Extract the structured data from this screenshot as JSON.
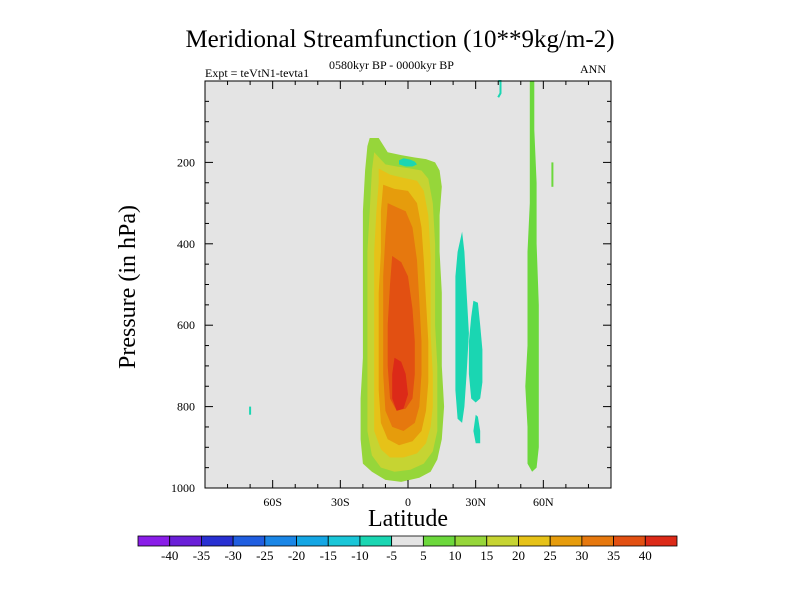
{
  "chart_data": {
    "type": "contour",
    "title": "Meridional Streamfunction (10**9kg/m-2)",
    "left_string": "Expt = teVtN1-tevta1",
    "center_string": "0580kyr BP - 0000kyr BP",
    "right_string": "ANN",
    "xlabel": "Latitude",
    "ylabel": "Pressure (in hPa)",
    "x_ticks": [
      {
        "value": -60,
        "label": "60S"
      },
      {
        "value": -30,
        "label": "30S"
      },
      {
        "value": 0,
        "label": "0"
      },
      {
        "value": 30,
        "label": "30N"
      },
      {
        "value": 60,
        "label": "60N"
      }
    ],
    "y_ticks": [
      {
        "value": 200,
        "label": "200"
      },
      {
        "value": 400,
        "label": "400"
      },
      {
        "value": 600,
        "label": "600"
      },
      {
        "value": 800,
        "label": "800"
      },
      {
        "value": 1000,
        "label": "1000"
      }
    ],
    "xlim": [
      -90,
      90
    ],
    "ylim": [
      1000,
      0
    ],
    "colorbar": {
      "levels": [
        "-40",
        "-35",
        "-30",
        "-25",
        "-20",
        "-15",
        "-10",
        "-5",
        "5",
        "10",
        "15",
        "20",
        "25",
        "30",
        "35",
        "40"
      ],
      "colors": [
        "#8a1ee8",
        "#6a1fd8",
        "#2830d2",
        "#205ee0",
        "#1a86e6",
        "#14a6e4",
        "#1ac6d8",
        "#1ad6b2",
        "#e4e4e4",
        "#6cd83c",
        "#96d63a",
        "#c6d432",
        "#e6c218",
        "#e69c0c",
        "#e6780e",
        "#e25012",
        "#dc2a18"
      ]
    },
    "regions": [
      {
        "level_index": 10,
        "points": [
          [
            -17,
            140
          ],
          [
            -13,
            140
          ],
          [
            -9,
            175
          ],
          [
            -3,
            182
          ],
          [
            3,
            188
          ],
          [
            8,
            192
          ],
          [
            12,
            200
          ],
          [
            14,
            220
          ],
          [
            15,
            260
          ],
          [
            14,
            330
          ],
          [
            14,
            420
          ],
          [
            15,
            520
          ],
          [
            15,
            620
          ],
          [
            15,
            700
          ],
          [
            16,
            800
          ],
          [
            15,
            880
          ],
          [
            13,
            930
          ],
          [
            10,
            960
          ],
          [
            5,
            975
          ],
          [
            -3,
            985
          ],
          [
            -10,
            980
          ],
          [
            -16,
            960
          ],
          [
            -20,
            940
          ],
          [
            -21,
            880
          ],
          [
            -21,
            780
          ],
          [
            -20,
            680
          ],
          [
            -20,
            560
          ],
          [
            -20,
            440
          ],
          [
            -20,
            320
          ],
          [
            -19,
            220
          ],
          [
            -18,
            160
          ]
        ]
      },
      {
        "level_index": 11,
        "points": [
          [
            -15,
            175
          ],
          [
            -10,
            205
          ],
          [
            -5,
            210
          ],
          [
            1,
            215
          ],
          [
            6,
            220
          ],
          [
            9,
            240
          ],
          [
            11,
            300
          ],
          [
            12,
            400
          ],
          [
            12,
            500
          ],
          [
            12,
            600
          ],
          [
            13,
            700
          ],
          [
            13,
            800
          ],
          [
            13,
            860
          ],
          [
            11,
            910
          ],
          [
            7,
            940
          ],
          [
            1,
            955
          ],
          [
            -6,
            960
          ],
          [
            -12,
            950
          ],
          [
            -16,
            920
          ],
          [
            -18,
            860
          ],
          [
            -18,
            760
          ],
          [
            -18,
            640
          ],
          [
            -18,
            520
          ],
          [
            -18,
            420
          ],
          [
            -17,
            320
          ],
          [
            -16,
            220
          ]
        ]
      },
      {
        "level_index": 12,
        "points": [
          [
            -13,
            215
          ],
          [
            -8,
            230
          ],
          [
            -2,
            238
          ],
          [
            4,
            245
          ],
          [
            7,
            270
          ],
          [
            9,
            330
          ],
          [
            10,
            430
          ],
          [
            10,
            520
          ],
          [
            10,
            620
          ],
          [
            11,
            720
          ],
          [
            11,
            800
          ],
          [
            10,
            850
          ],
          [
            8,
            890
          ],
          [
            4,
            915
          ],
          [
            -2,
            925
          ],
          [
            -8,
            925
          ],
          [
            -12,
            905
          ],
          [
            -15,
            860
          ],
          [
            -15,
            760
          ],
          [
            -15,
            640
          ],
          [
            -15,
            520
          ],
          [
            -15,
            420
          ],
          [
            -14,
            320
          ],
          [
            -13,
            250
          ]
        ]
      },
      {
        "level_index": 13,
        "points": [
          [
            -11,
            255
          ],
          [
            -6,
            265
          ],
          [
            0,
            270
          ],
          [
            4,
            300
          ],
          [
            6,
            360
          ],
          [
            7,
            440
          ],
          [
            8,
            540
          ],
          [
            9,
            640
          ],
          [
            9,
            740
          ],
          [
            8,
            810
          ],
          [
            6,
            860
          ],
          [
            2,
            885
          ],
          [
            -4,
            895
          ],
          [
            -9,
            880
          ],
          [
            -12,
            840
          ],
          [
            -13,
            760
          ],
          [
            -13,
            640
          ],
          [
            -13,
            520
          ],
          [
            -12,
            420
          ],
          [
            -12,
            320
          ]
        ]
      },
      {
        "level_index": 14,
        "points": [
          [
            -9,
            300
          ],
          [
            -5,
            310
          ],
          [
            -1,
            320
          ],
          [
            2,
            360
          ],
          [
            4,
            440
          ],
          [
            5,
            540
          ],
          [
            6,
            640
          ],
          [
            6,
            720
          ],
          [
            5,
            800
          ],
          [
            3,
            840
          ],
          [
            -2,
            860
          ],
          [
            -7,
            850
          ],
          [
            -10,
            810
          ],
          [
            -11,
            720
          ],
          [
            -11,
            600
          ],
          [
            -11,
            480
          ],
          [
            -10,
            380
          ]
        ]
      },
      {
        "level_index": 15,
        "points": [
          [
            -7,
            430
          ],
          [
            -3,
            445
          ],
          [
            0,
            480
          ],
          [
            2,
            560
          ],
          [
            3,
            640
          ],
          [
            3,
            720
          ],
          [
            2,
            780
          ],
          [
            -1,
            805
          ],
          [
            -5,
            810
          ],
          [
            -8,
            780
          ],
          [
            -9,
            700
          ],
          [
            -9,
            600
          ],
          [
            -8,
            500
          ]
        ]
      },
      {
        "level_index": 16,
        "points": [
          [
            -6,
            680
          ],
          [
            -3,
            690
          ],
          [
            -1,
            720
          ],
          [
            0,
            770
          ],
          [
            -2,
            805
          ],
          [
            -5,
            810
          ],
          [
            -7,
            780
          ],
          [
            -7,
            720
          ]
        ]
      },
      {
        "level_index": 7,
        "points": [
          [
            -4,
            195
          ],
          [
            -2,
            190
          ],
          [
            1,
            193
          ],
          [
            3,
            198
          ],
          [
            4,
            205
          ],
          [
            2,
            210
          ],
          [
            -1,
            210
          ],
          [
            -4,
            205
          ]
        ]
      },
      {
        "level_index": 7,
        "points": [
          [
            22,
            420
          ],
          [
            24,
            370
          ],
          [
            25,
            420
          ],
          [
            26,
            520
          ],
          [
            27,
            620
          ],
          [
            26,
            720
          ],
          [
            25,
            800
          ],
          [
            24,
            840
          ],
          [
            22,
            830
          ],
          [
            21,
            760
          ],
          [
            21,
            660
          ],
          [
            21,
            560
          ],
          [
            21,
            480
          ]
        ]
      },
      {
        "level_index": 7,
        "points": [
          [
            29,
            540
          ],
          [
            31,
            545
          ],
          [
            32,
            600
          ],
          [
            33,
            660
          ],
          [
            33,
            740
          ],
          [
            32,
            780
          ],
          [
            30,
            790
          ],
          [
            28,
            780
          ],
          [
            27,
            720
          ],
          [
            27,
            640
          ],
          [
            28,
            580
          ]
        ]
      },
      {
        "level_index": 7,
        "points": [
          [
            30,
            820
          ],
          [
            31,
            825
          ],
          [
            32,
            860
          ],
          [
            32,
            890
          ],
          [
            30,
            890
          ],
          [
            29,
            860
          ]
        ]
      },
      {
        "level_index": 7,
        "points": [
          [
            -70,
            800
          ],
          [
            -70,
            820
          ]
        ]
      },
      {
        "level_index": 9,
        "points": [
          [
            54,
            0
          ],
          [
            56,
            0
          ],
          [
            56,
            120
          ],
          [
            57,
            250
          ],
          [
            57,
            400
          ],
          [
            58,
            550
          ],
          [
            58,
            700
          ],
          [
            58,
            820
          ],
          [
            58,
            900
          ],
          [
            57,
            950
          ],
          [
            55,
            960
          ],
          [
            53,
            940
          ],
          [
            53,
            850
          ],
          [
            52,
            750
          ],
          [
            53,
            650
          ],
          [
            53,
            550
          ],
          [
            53,
            420
          ],
          [
            54,
            300
          ],
          [
            54,
            200
          ],
          [
            54,
            100
          ]
        ]
      },
      {
        "level_index": 7,
        "points": [
          [
            40,
            0
          ],
          [
            41,
            0
          ],
          [
            41,
            30
          ],
          [
            40,
            40
          ]
        ]
      },
      {
        "level_index": 9,
        "points": [
          [
            64,
            200
          ],
          [
            64,
            230
          ],
          [
            64,
            260
          ]
        ]
      }
    ]
  }
}
